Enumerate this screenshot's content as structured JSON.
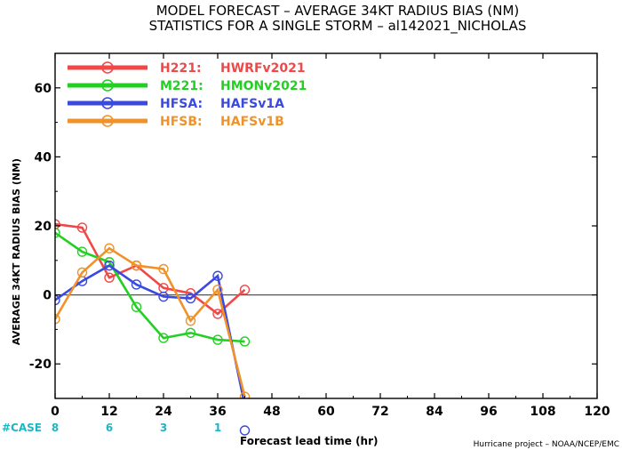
{
  "chart_data": {
    "type": "line",
    "title": "MODEL FORECAST – AVERAGE 34KT RADIUS BIAS (NM)",
    "subtitle": "STATISTICS FOR A SINGLE STORM – al142021_NICHOLAS",
    "xlabel": "Forecast lead time (hr)",
    "ylabel": "AVERAGE 34KT RADIUS BIAS (NM)",
    "credit": "Hurricane project – NOAA/NCEP/EMC",
    "xlim": [
      0,
      120
    ],
    "ylim": [
      -30,
      70
    ],
    "xticks": [
      0,
      12,
      24,
      36,
      48,
      60,
      72,
      84,
      96,
      108,
      120
    ],
    "yticks": [
      -20,
      0,
      20,
      40,
      60
    ],
    "zero_line": true,
    "legend_position": "top-left",
    "series": [
      {
        "id": "H221",
        "label": "H221:",
        "name": "HWRFv2021",
        "color": "#f04848",
        "x": [
          0,
          6,
          12,
          18,
          24,
          30,
          36,
          42
        ],
        "y": [
          20.5,
          19.5,
          5.0,
          8.5,
          2.0,
          0.5,
          -5.5,
          1.5
        ]
      },
      {
        "id": "M221",
        "label": "M221:",
        "name": "HMONv2021",
        "color": "#22d022",
        "x": [
          0,
          6,
          12,
          18,
          24,
          30,
          36,
          42
        ],
        "y": [
          18.0,
          12.5,
          9.5,
          -3.5,
          -12.5,
          -11.0,
          -13.0,
          -13.5
        ]
      },
      {
        "id": "HFSA",
        "label": "HFSA:",
        "name": "HAFSv1A",
        "color": "#3a4ae0",
        "x": [
          0,
          6,
          12,
          18,
          24,
          30,
          36,
          42
        ],
        "y": [
          -1.5,
          4.0,
          8.5,
          3.0,
          -0.5,
          -1.0,
          5.5,
          -32.0
        ]
      },
      {
        "id": "HFSB",
        "label": "HFSB:",
        "name": "HAFSv1B",
        "color": "#f0922a",
        "x": [
          0,
          6,
          12,
          18,
          24,
          30,
          36,
          42
        ],
        "y": [
          -7.0,
          6.5,
          13.5,
          8.5,
          7.5,
          -7.5,
          1.5,
          -29.5
        ]
      }
    ],
    "case_label": "#CASE",
    "cases": [
      {
        "x": 0,
        "count": "8"
      },
      {
        "x": 12,
        "count": "6"
      },
      {
        "x": 24,
        "count": "3"
      },
      {
        "x": 36,
        "count": "1"
      }
    ],
    "off_scale_marker": {
      "x": 42,
      "color": "#3a4ae0"
    }
  }
}
